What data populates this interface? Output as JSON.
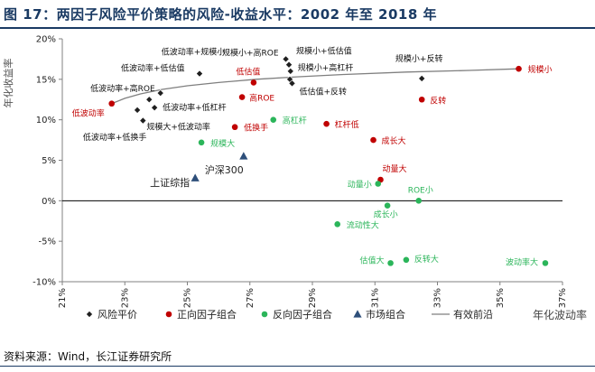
{
  "title": "图 17：两因子风险平价策略的风险-收益水平：2002 年至 2018 年",
  "source": "资料来源：Wind，长江证券研究所",
  "colors": {
    "title": "#1a3a63",
    "scale": "#1f1f1f",
    "pos": "#c00000",
    "neg": "#2bb55a",
    "market": "#2e4f7a",
    "frontier": "#7f7f7f",
    "axis": "#808080"
  },
  "chart_data": {
    "type": "scatter",
    "xlabel": "年化波动率",
    "ylabel": "年化收益率",
    "xlim": [
      0.21,
      0.37
    ],
    "ylim": [
      -0.1,
      0.2
    ],
    "xticks": [
      "21%",
      "23%",
      "25%",
      "27%",
      "29%",
      "31%",
      "33%",
      "35%",
      "37%"
    ],
    "yticks": [
      "-10%",
      "-5%",
      "0%",
      "5%",
      "10%",
      "15%",
      "20%"
    ],
    "legend": [
      {
        "key": "scale",
        "label": "风险平价",
        "marker": "diamond"
      },
      {
        "key": "pos",
        "label": "正向因子组合",
        "marker": "circle"
      },
      {
        "key": "neg",
        "label": "反向因子组合",
        "marker": "circle"
      },
      {
        "key": "market",
        "label": "市场组合",
        "marker": "triangle"
      },
      {
        "key": "frontier",
        "label": "有效前沿",
        "marker": "line"
      }
    ],
    "series": [
      {
        "key": "scale",
        "name": "风险平价",
        "points": [
          {
            "x": 0.2539,
            "y": 0.157,
            "label": "低波动率+规模小",
            "anchor": "middle",
            "dx": -7,
            "dy": -21
          },
          {
            "x": 0.2815,
            "y": 0.175,
            "label": "规模小+高ROE",
            "anchor": "end",
            "dx": -8,
            "dy": -4
          },
          {
            "x": 0.2825,
            "y": 0.168,
            "label": "规模小+低估值",
            "anchor": "start",
            "dx": 8,
            "dy": -12
          },
          {
            "x": 0.283,
            "y": 0.16,
            "label": "规模小+高杠杆",
            "anchor": "start",
            "dx": 8,
            "dy": -1
          },
          {
            "x": 0.2828,
            "y": 0.15,
            "label": "",
            "anchor": "start",
            "dx": 0,
            "dy": 0
          },
          {
            "x": 0.2835,
            "y": 0.145,
            "label": "低估值+反转",
            "anchor": "start",
            "dx": 8,
            "dy": 12
          },
          {
            "x": 0.325,
            "y": 0.151,
            "label": "规模小+反转",
            "anchor": "middle",
            "dx": -3,
            "dy": -19
          },
          {
            "x": 0.2414,
            "y": 0.133,
            "label": "低波动率+高ROE",
            "anchor": "end",
            "dx": -6,
            "dy": -2
          },
          {
            "x": 0.2378,
            "y": 0.125,
            "label": "低波动率+低估值",
            "anchor": "middle",
            "dx": 4,
            "dy": -32
          },
          {
            "x": 0.2395,
            "y": 0.115,
            "label": "低波动率+低杠杆",
            "anchor": "start",
            "dx": 9,
            "dy": 3
          },
          {
            "x": 0.234,
            "y": 0.112,
            "label": "低波动率+低换手",
            "anchor": "middle",
            "dx": -25,
            "dy": 33
          },
          {
            "x": 0.2358,
            "y": 0.099,
            "label": "规模大+低波动率",
            "anchor": "start",
            "dx": 4,
            "dy": 10
          }
        ]
      },
      {
        "key": "pos",
        "name": "正向因子组合",
        "points": [
          {
            "x": 0.356,
            "y": 0.163,
            "label": "规模小",
            "anchor": "start",
            "dx": 10,
            "dy": 4
          },
          {
            "x": 0.2712,
            "y": 0.146,
            "label": "低估值",
            "anchor": "middle",
            "dx": -6,
            "dy": -9
          },
          {
            "x": 0.2675,
            "y": 0.128,
            "label": "高ROE",
            "anchor": "start",
            "dx": 8,
            "dy": 4
          },
          {
            "x": 0.325,
            "y": 0.125,
            "label": "反转",
            "anchor": "start",
            "dx": 9,
            "dy": 4
          },
          {
            "x": 0.2258,
            "y": 0.12,
            "label": "低波动率",
            "anchor": "middle",
            "dx": -26,
            "dy": 14
          },
          {
            "x": 0.2945,
            "y": 0.095,
            "label": "杠杆低",
            "anchor": "start",
            "dx": 9,
            "dy": 4
          },
          {
            "x": 0.2652,
            "y": 0.091,
            "label": "低换手",
            "anchor": "start",
            "dx": 10,
            "dy": 4
          },
          {
            "x": 0.3095,
            "y": 0.075,
            "label": "成长大",
            "anchor": "start",
            "dx": 9,
            "dy": 4
          },
          {
            "x": 0.3118,
            "y": 0.026,
            "label": "动量大",
            "anchor": "start",
            "dx": 2,
            "dy": -9
          }
        ]
      },
      {
        "key": "neg",
        "name": "反向因子组合",
        "points": [
          {
            "x": 0.2775,
            "y": 0.1,
            "label": "高杠杆",
            "anchor": "start",
            "dx": 10,
            "dy": 4
          },
          {
            "x": 0.2545,
            "y": 0.072,
            "label": "规模大",
            "anchor": "start",
            "dx": 10,
            "dy": 4
          },
          {
            "x": 0.311,
            "y": 0.021,
            "label": "动量小",
            "anchor": "end",
            "dx": -7,
            "dy": 4
          },
          {
            "x": 0.324,
            "y": 0.0,
            "label": "ROE小",
            "anchor": "middle",
            "dx": 2,
            "dy": -9
          },
          {
            "x": 0.314,
            "y": -0.006,
            "label": "成长小",
            "anchor": "middle",
            "dx": -2,
            "dy": 13
          },
          {
            "x": 0.298,
            "y": -0.029,
            "label": "流动性大",
            "anchor": "start",
            "dx": 10,
            "dy": 4
          },
          {
            "x": 0.315,
            "y": -0.077,
            "label": "估值大",
            "anchor": "end",
            "dx": -7,
            "dy": 0
          },
          {
            "x": 0.32,
            "y": -0.073,
            "label": "反转大",
            "anchor": "start",
            "dx": 9,
            "dy": 2
          },
          {
            "x": 0.3645,
            "y": -0.077,
            "label": "波动率大",
            "anchor": "end",
            "dx": -8,
            "dy": 2
          }
        ]
      },
      {
        "key": "market",
        "name": "市场组合",
        "points": [
          {
            "x": 0.268,
            "y": 0.055,
            "label": "沪深300",
            "anchor": "end",
            "dx": 0,
            "dy": 19
          },
          {
            "x": 0.2525,
            "y": 0.028,
            "label": "上证综指",
            "anchor": "end",
            "dx": -6,
            "dy": 9
          }
        ]
      }
    ],
    "frontier": [
      {
        "x": 0.2258,
        "y": 0.12
      },
      {
        "x": 0.23,
        "y": 0.1265
      },
      {
        "x": 0.235,
        "y": 0.132
      },
      {
        "x": 0.242,
        "y": 0.1375
      },
      {
        "x": 0.25,
        "y": 0.142
      },
      {
        "x": 0.26,
        "y": 0.146
      },
      {
        "x": 0.272,
        "y": 0.15
      },
      {
        "x": 0.285,
        "y": 0.153
      },
      {
        "x": 0.3,
        "y": 0.156
      },
      {
        "x": 0.32,
        "y": 0.159
      },
      {
        "x": 0.34,
        "y": 0.161
      },
      {
        "x": 0.356,
        "y": 0.163
      }
    ]
  }
}
